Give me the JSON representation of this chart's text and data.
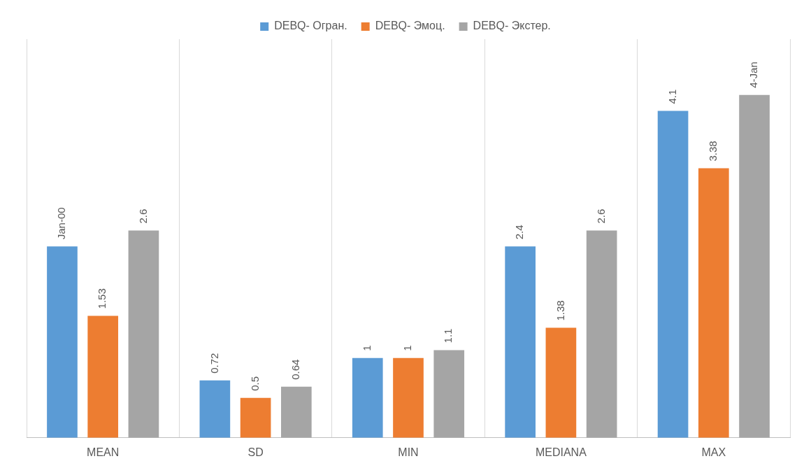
{
  "chart_data": {
    "type": "bar",
    "categories": [
      "MEAN",
      "SD",
      "MIN",
      "MEDIANA",
      "MAX"
    ],
    "series": [
      {
        "name": "DEBQ- Огран.",
        "color": "#5b9bd5",
        "values": [
          2.4,
          0.72,
          1,
          2.4,
          4.1
        ],
        "value_labels": [
          "Jan-00",
          "0.72",
          "1",
          "2.4",
          "4.1"
        ]
      },
      {
        "name": "DEBQ- Эмоц.",
        "color": "#ed7d31",
        "values": [
          1.53,
          0.5,
          1,
          1.38,
          3.38
        ],
        "value_labels": [
          "1.53",
          "0.5",
          "1",
          "1.38",
          "3.38"
        ]
      },
      {
        "name": "DEBQ- Экстер.",
        "color": "#a5a5a5",
        "values": [
          2.6,
          0.64,
          1.1,
          2.6,
          4.3
        ],
        "value_labels": [
          "2.6",
          "0.64",
          "1.1",
          "2.6",
          "4-Jan"
        ]
      }
    ],
    "ylim": [
      0,
      5
    ],
    "tick_labels": "x",
    "grid": "x",
    "legend": "top"
  }
}
